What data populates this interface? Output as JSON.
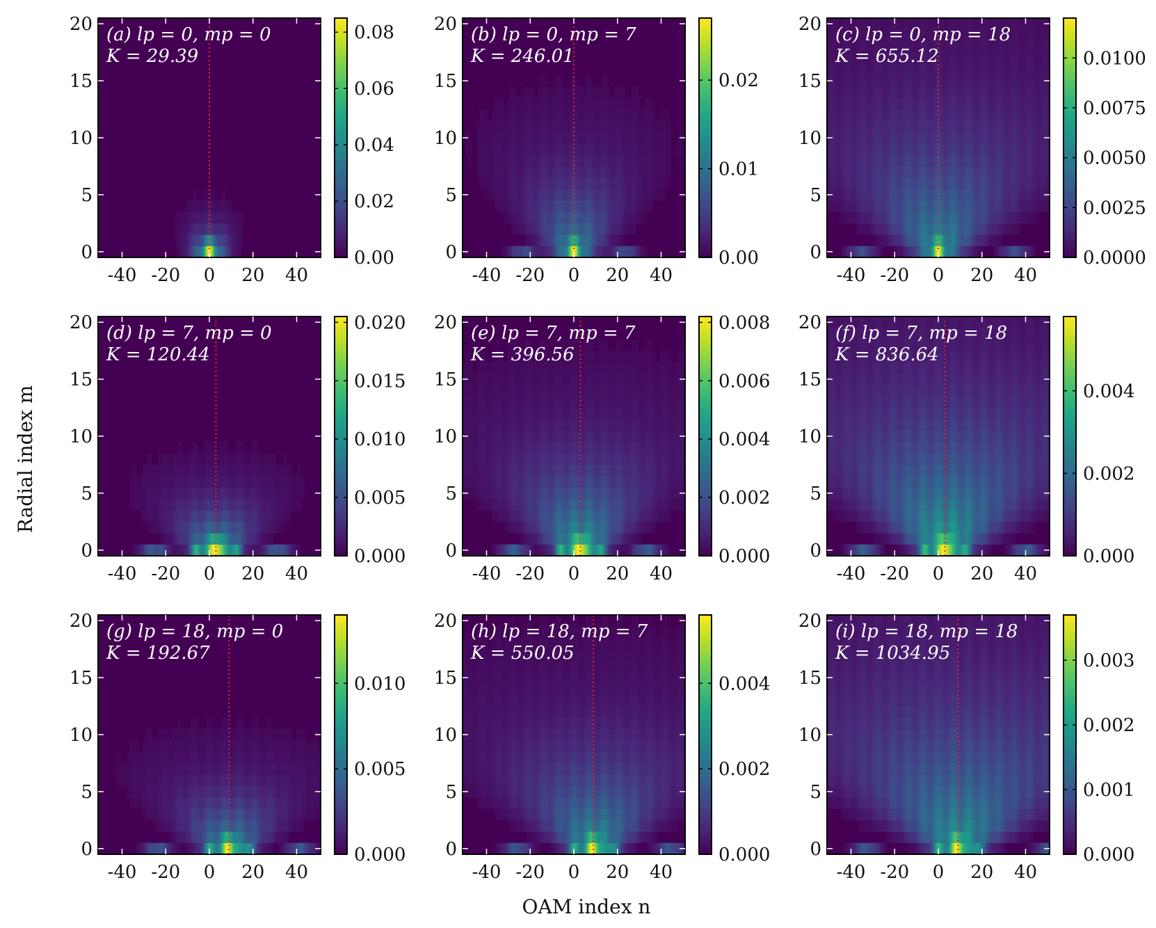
{
  "figure": {
    "xlabel": "OAM index n",
    "ylabel": "Radial index m"
  },
  "chart_data": [
    {
      "id": "a",
      "type": "heatmap",
      "label": "(a) l_p = 0, m_p = 0",
      "annotation_line1": "(a) lp = 0, mp = 0",
      "annotation_line2": "K = 29.39",
      "lp": 0,
      "mp": 0,
      "K": 29.39,
      "center_n": 0,
      "width_scale": 0.45,
      "height_scale": 1.2,
      "side_peaks": 0,
      "xlim": [
        -51,
        51
      ],
      "ylim": [
        -0.5,
        20.5
      ],
      "xticks": [
        -40,
        -20,
        0,
        20,
        40
      ],
      "yticks": [
        0,
        5,
        10,
        15,
        20
      ],
      "xtick_labels": [
        "-40",
        "-20",
        "0",
        "20",
        "40"
      ],
      "ytick_labels": [
        "0",
        "5",
        "10",
        "15",
        "20"
      ],
      "colorbar": {
        "min": 0,
        "max": 0.085,
        "ticks": [
          0,
          0.02,
          0.04,
          0.06,
          0.08
        ],
        "tick_labels": [
          "0.00",
          "0.02",
          "0.04",
          "0.06",
          "0.08"
        ]
      }
    },
    {
      "id": "b",
      "type": "heatmap",
      "label": "(b) l_p = 0, m_p = 7",
      "annotation_line1": "(b) lp = 0, mp = 7",
      "annotation_line2": "K = 246.01",
      "lp": 0,
      "mp": 7,
      "K": 246.01,
      "center_n": 0,
      "width_scale": 1.0,
      "height_scale": 3.5,
      "side_peaks": 1,
      "xlim": [
        -51,
        51
      ],
      "ylim": [
        -0.5,
        20.5
      ],
      "xticks": [
        -40,
        -20,
        0,
        20,
        40
      ],
      "yticks": [
        0,
        5,
        10,
        15,
        20
      ],
      "xtick_labels": [
        "-40",
        "-20",
        "0",
        "20",
        "40"
      ],
      "ytick_labels": [
        "0",
        "5",
        "10",
        "15",
        "20"
      ],
      "colorbar": {
        "min": 0,
        "max": 0.027,
        "ticks": [
          0,
          0.01,
          0.02
        ],
        "tick_labels": [
          "0.00",
          "0.01",
          "0.02"
        ]
      }
    },
    {
      "id": "c",
      "type": "heatmap",
      "label": "(c) l_p = 0, m_p = 18",
      "annotation_line1": "(c) lp = 0, mp = 18",
      "annotation_line2": "K = 655.12",
      "lp": 0,
      "mp": 18,
      "K": 655.12,
      "center_n": 0,
      "width_scale": 1.5,
      "height_scale": 6.0,
      "side_peaks": 1,
      "xlim": [
        -51,
        51
      ],
      "ylim": [
        -0.5,
        20.5
      ],
      "xticks": [
        -40,
        -20,
        0,
        20,
        40
      ],
      "yticks": [
        0,
        5,
        10,
        15,
        20
      ],
      "xtick_labels": [
        "-40",
        "-20",
        "0",
        "20",
        "40"
      ],
      "ytick_labels": [
        "0",
        "5",
        "10",
        "15",
        "20"
      ],
      "colorbar": {
        "min": 0,
        "max": 0.012,
        "ticks": [
          0,
          0.0025,
          0.005,
          0.0075,
          0.01
        ],
        "tick_labels": [
          "0.0000",
          "0.0025",
          "0.0050",
          "0.0075",
          "0.0100"
        ]
      }
    },
    {
      "id": "d",
      "type": "heatmap",
      "label": "(d) l_p = 7, m_p = 0",
      "annotation_line1": "(d) lp = 7, mp = 0",
      "annotation_line2": "K = 120.44",
      "lp": 7,
      "mp": 0,
      "K": 120.44,
      "center_n": 3,
      "width_scale": 1.2,
      "height_scale": 2.0,
      "side_peaks": 2,
      "xlim": [
        -51,
        51
      ],
      "ylim": [
        -0.5,
        20.5
      ],
      "xticks": [
        -40,
        -20,
        0,
        20,
        40
      ],
      "yticks": [
        0,
        5,
        10,
        15,
        20
      ],
      "xtick_labels": [
        "-40",
        "-20",
        "0",
        "20",
        "40"
      ],
      "ytick_labels": [
        "0",
        "5",
        "10",
        "15",
        "20"
      ],
      "colorbar": {
        "min": 0,
        "max": 0.0205,
        "ticks": [
          0,
          0.005,
          0.01,
          0.015,
          0.02
        ],
        "tick_labels": [
          "0.000",
          "0.005",
          "0.010",
          "0.015",
          "0.020"
        ]
      }
    },
    {
      "id": "e",
      "type": "heatmap",
      "label": "(e) l_p = 7, m_p = 7",
      "annotation_line1": "(e) lp = 7, mp = 7",
      "annotation_line2": "K = 396.56",
      "lp": 7,
      "mp": 7,
      "K": 396.56,
      "center_n": 3,
      "width_scale": 1.3,
      "height_scale": 4.0,
      "side_peaks": 2,
      "xlim": [
        -51,
        51
      ],
      "ylim": [
        -0.5,
        20.5
      ],
      "xticks": [
        -40,
        -20,
        0,
        20,
        40
      ],
      "yticks": [
        0,
        5,
        10,
        15,
        20
      ],
      "xtick_labels": [
        "-40",
        "-20",
        "0",
        "20",
        "40"
      ],
      "ytick_labels": [
        "0",
        "5",
        "10",
        "15",
        "20"
      ],
      "colorbar": {
        "min": 0,
        "max": 0.0082,
        "ticks": [
          0,
          0.002,
          0.004,
          0.006,
          0.008
        ],
        "tick_labels": [
          "0.000",
          "0.002",
          "0.004",
          "0.006",
          "0.008"
        ]
      }
    },
    {
      "id": "f",
      "type": "heatmap",
      "label": "(f) l_p = 7, m_p = 18",
      "annotation_line1": "(f) lp = 7, mp = 18",
      "annotation_line2": "K = 836.64",
      "lp": 7,
      "mp": 18,
      "K": 836.64,
      "center_n": 3,
      "width_scale": 1.6,
      "height_scale": 6.5,
      "side_peaks": 2,
      "xlim": [
        -51,
        51
      ],
      "ylim": [
        -0.5,
        20.5
      ],
      "xticks": [
        -40,
        -20,
        0,
        20,
        40
      ],
      "yticks": [
        0,
        5,
        10,
        15,
        20
      ],
      "xtick_labels": [
        "-40",
        "-20",
        "0",
        "20",
        "40"
      ],
      "ytick_labels": [
        "0",
        "5",
        "10",
        "15",
        "20"
      ],
      "colorbar": {
        "min": 0,
        "max": 0.0058,
        "ticks": [
          0,
          0.002,
          0.004
        ],
        "tick_labels": [
          "0.000",
          "0.002",
          "0.004"
        ]
      }
    },
    {
      "id": "g",
      "type": "heatmap",
      "label": "(g) l_p = 18, m_p = 0",
      "annotation_line1": "(g) lp = 18, mp = 0",
      "annotation_line2": "K = 192.67",
      "lp": 18,
      "mp": 0,
      "K": 192.67,
      "center_n": 9,
      "width_scale": 1.4,
      "height_scale": 2.5,
      "side_peaks": 2,
      "xlim": [
        -51,
        51
      ],
      "ylim": [
        -0.5,
        20.5
      ],
      "xticks": [
        -40,
        -20,
        0,
        20,
        40
      ],
      "yticks": [
        0,
        5,
        10,
        15,
        20
      ],
      "xtick_labels": [
        "-40",
        "-20",
        "0",
        "20",
        "40"
      ],
      "ytick_labels": [
        "0",
        "5",
        "10",
        "15",
        "20"
      ],
      "colorbar": {
        "min": 0,
        "max": 0.014,
        "ticks": [
          0,
          0.005,
          0.01
        ],
        "tick_labels": [
          "0.000",
          "0.005",
          "0.010"
        ]
      }
    },
    {
      "id": "h",
      "type": "heatmap",
      "label": "(h) l_p = 18, m_p = 7",
      "annotation_line1": "(h) lp = 18, mp = 7",
      "annotation_line2": "K = 550.05",
      "lp": 18,
      "mp": 7,
      "K": 550.05,
      "center_n": 9,
      "width_scale": 1.5,
      "height_scale": 4.5,
      "side_peaks": 2,
      "xlim": [
        -51,
        51
      ],
      "ylim": [
        -0.5,
        20.5
      ],
      "xticks": [
        -40,
        -20,
        0,
        20,
        40
      ],
      "yticks": [
        0,
        5,
        10,
        15,
        20
      ],
      "xtick_labels": [
        "-40",
        "-20",
        "0",
        "20",
        "40"
      ],
      "ytick_labels": [
        "0",
        "5",
        "10",
        "15",
        "20"
      ],
      "colorbar": {
        "min": 0,
        "max": 0.0056,
        "ticks": [
          0,
          0.002,
          0.004
        ],
        "tick_labels": [
          "0.000",
          "0.002",
          "0.004"
        ]
      }
    },
    {
      "id": "i",
      "type": "heatmap",
      "label": "(i) l_p = 18, m_p = 18",
      "annotation_line1": "(i) lp = 18, mp = 18",
      "annotation_line2": "K = 1034.95",
      "lp": 18,
      "mp": 18,
      "K": 1034.95,
      "center_n": 9,
      "width_scale": 1.8,
      "height_scale": 7.0,
      "side_peaks": 2,
      "xlim": [
        -51,
        51
      ],
      "ylim": [
        -0.5,
        20.5
      ],
      "xticks": [
        -40,
        -20,
        0,
        20,
        40
      ],
      "yticks": [
        0,
        5,
        10,
        15,
        20
      ],
      "xtick_labels": [
        "-40",
        "-20",
        "0",
        "20",
        "40"
      ],
      "ytick_labels": [
        "0",
        "5",
        "10",
        "15",
        "20"
      ],
      "colorbar": {
        "min": 0,
        "max": 0.0037,
        "ticks": [
          0,
          0.001,
          0.002,
          0.003
        ],
        "tick_labels": [
          "0.000",
          "0.001",
          "0.002",
          "0.003"
        ]
      }
    }
  ],
  "colors": {
    "viridis": [
      "#440154",
      "#482475",
      "#414487",
      "#355f8d",
      "#2a788e",
      "#21918c",
      "#22a884",
      "#44bf70",
      "#7ad151",
      "#bddf26",
      "#fde725"
    ],
    "center_line": "#e8262a",
    "annotation_text": "#ffffff"
  }
}
